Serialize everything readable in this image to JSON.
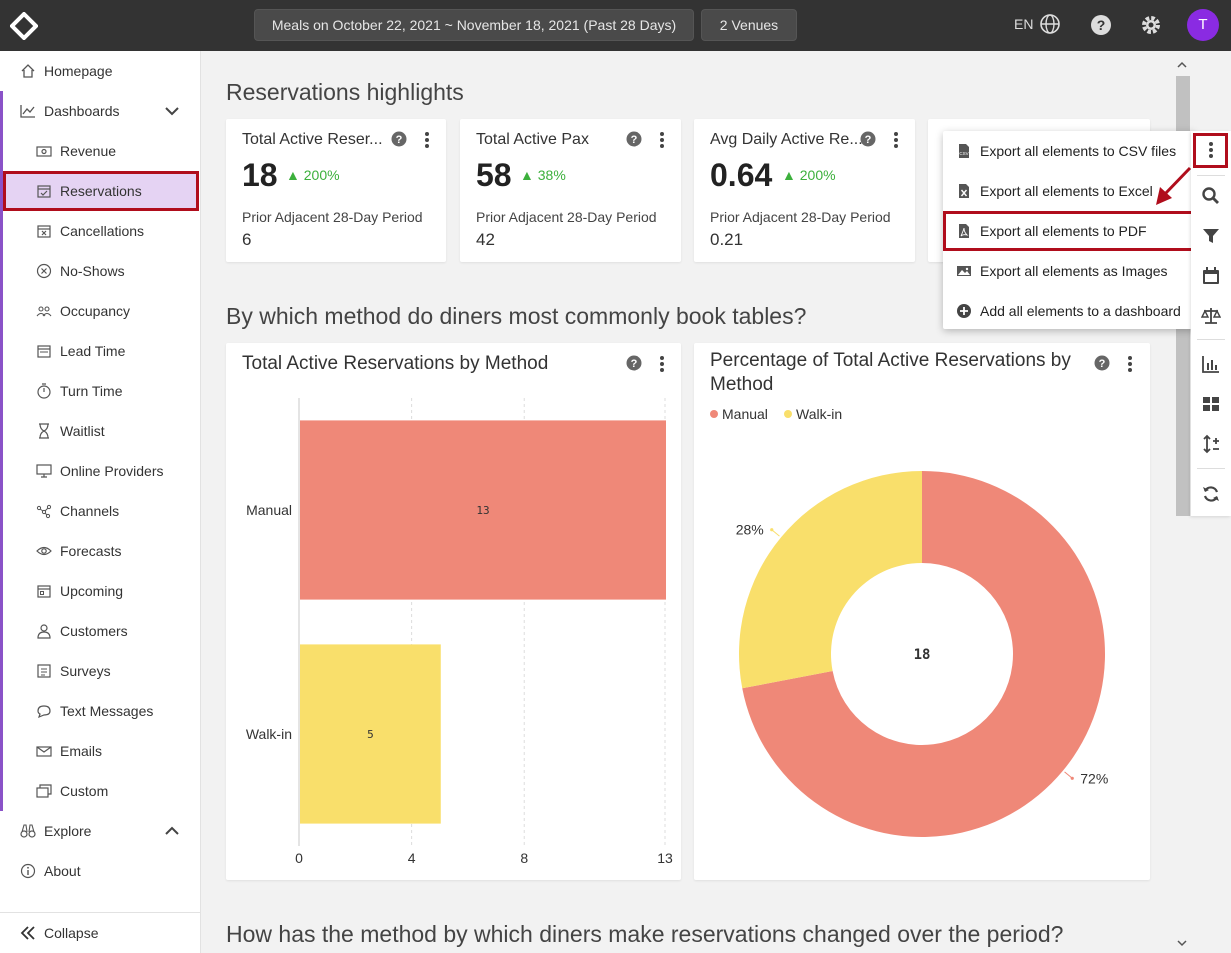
{
  "topbar": {
    "date_range": "Meals on October 22, 2021 ~ November 18, 2021 (Past 28 Days)",
    "venues": "2 Venues",
    "language": "EN",
    "avatar_initial": "T"
  },
  "sidebar": {
    "homepage": "Homepage",
    "dashboards": "Dashboards",
    "items": [
      {
        "label": "Revenue",
        "icon": "money-icon"
      },
      {
        "label": "Reservations",
        "icon": "calendar-check-icon"
      },
      {
        "label": "Cancellations",
        "icon": "calendar-x-icon"
      },
      {
        "label": "No-Shows",
        "icon": "circle-x-icon"
      },
      {
        "label": "Occupancy",
        "icon": "people-icon"
      },
      {
        "label": "Lead Time",
        "icon": "calendar-icon"
      },
      {
        "label": "Turn Time",
        "icon": "stopwatch-icon"
      },
      {
        "label": "Waitlist",
        "icon": "hourglass-icon"
      },
      {
        "label": "Online Providers",
        "icon": "monitor-icon"
      },
      {
        "label": "Channels",
        "icon": "nodes-icon"
      },
      {
        "label": "Forecasts",
        "icon": "eye-icon"
      },
      {
        "label": "Upcoming",
        "icon": "calendar-day-icon"
      },
      {
        "label": "Customers",
        "icon": "person-icon"
      },
      {
        "label": "Surveys",
        "icon": "list-icon"
      },
      {
        "label": "Text Messages",
        "icon": "chat-icon"
      },
      {
        "label": "Emails",
        "icon": "email-icon"
      },
      {
        "label": "Custom",
        "icon": "custom-icon"
      }
    ],
    "explore": "Explore",
    "about": "About",
    "collapse": "Collapse"
  },
  "main": {
    "section1_title": "Reservations highlights",
    "kpis": [
      {
        "title": "Total Active Reser...",
        "value": "18",
        "delta": "200%",
        "prior_label": "Prior Adjacent 28-Day Period",
        "prior_value": "6"
      },
      {
        "title": "Total Active Pax",
        "value": "58",
        "delta": "38%",
        "prior_label": "Prior Adjacent 28-Day Period",
        "prior_value": "42"
      },
      {
        "title": "Avg Daily Active Re...",
        "value": "0.64",
        "delta": "200%",
        "prior_label": "Prior Adjacent 28-Day Period",
        "prior_value": "0.21"
      }
    ],
    "section2_title": "By which method do diners most commonly book tables?",
    "bar_chart_title": "Total Active Reservations by Method",
    "pie_chart_title": "Percentage of Total Active Reservations by Method",
    "section3_title": "How has the method by which diners make reservations changed over the period?"
  },
  "chart_data": [
    {
      "type": "bar",
      "orientation": "horizontal",
      "title": "Total Active Reservations by Method",
      "categories": [
        "Manual",
        "Walk-in"
      ],
      "values": [
        13,
        5
      ],
      "colors": [
        "#ef8878",
        "#f9df6b"
      ],
      "xticks": [
        "0",
        "4",
        "8",
        "13"
      ],
      "xlim": [
        0,
        13
      ]
    },
    {
      "type": "pie",
      "title": "Percentage of Total Active Reservations by Method",
      "labels": [
        "Manual",
        "Walk-in"
      ],
      "values": [
        72,
        28
      ],
      "value_labels": [
        "72%",
        "28%"
      ],
      "center_label": "18",
      "colors": [
        "#ef8878",
        "#f9df6b"
      ],
      "legend_position": "top-left"
    }
  ],
  "export_menu": [
    {
      "label": "Export all elements to CSV files",
      "icon": "csv-file-icon"
    },
    {
      "label": "Export all elements to Excel",
      "icon": "excel-file-icon"
    },
    {
      "label": "Export all elements to PDF",
      "icon": "pdf-file-icon"
    },
    {
      "label": "Export all elements as Images",
      "icon": "image-icon"
    },
    {
      "label": "Add all elements to a dashboard",
      "icon": "plus-circle-icon"
    }
  ],
  "colors": {
    "accent_purple": "#8a52c8",
    "highlight_red": "#b00d1c",
    "delta_green": "#3cb03c",
    "manual": "#ef8878",
    "walkin": "#f9df6b"
  }
}
